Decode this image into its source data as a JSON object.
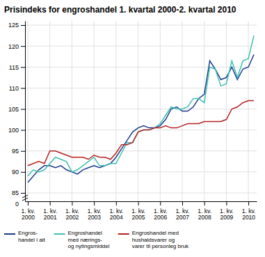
{
  "chart_data": {
    "type": "line",
    "title": "Prisindeks for engroshandel 1. kvartal 2000-2. kvartal 2010",
    "categories": [
      "1. kv.\n2000",
      null,
      null,
      null,
      "1. kv.\n2001",
      null,
      null,
      null,
      "1. kv.\n2002",
      null,
      null,
      null,
      "1. kv.\n2003",
      null,
      null,
      null,
      "1. kv.\n2004",
      null,
      null,
      null,
      "1. kv.\n2005",
      null,
      null,
      null,
      "1. kv.\n2006",
      null,
      null,
      null,
      "1. kv.\n2007",
      null,
      null,
      null,
      "1. kv.\n2008",
      null,
      null,
      null,
      "1. kv.\n2009",
      null,
      null,
      null,
      "1. kv.\n2010",
      null
    ],
    "series": [
      {
        "name": "Engros-\nhandel i alt",
        "color": "#1a3a8c",
        "values": [
          87.5,
          89.0,
          90.5,
          91.5,
          91.5,
          91.0,
          91.5,
          90.5,
          90.0,
          89.5,
          90.5,
          91.0,
          91.5,
          91.0,
          91.5,
          92.0,
          93.5,
          95.5,
          97.5,
          99.5,
          100.5,
          101.0,
          100.5,
          100.5,
          101.0,
          102.5,
          105.0,
          105.5,
          104.5,
          104.5,
          105.5,
          107.5,
          108.5,
          116.5,
          114.5,
          112.0,
          112.5,
          115.0,
          112.0,
          114.5,
          115.0,
          118.0
        ]
      },
      {
        "name": "Engroshandel\nmed nærings-\nog nytingsmiddel",
        "color": "#3dbfb0",
        "values": [
          89.0,
          90.5,
          90.0,
          90.5,
          92.0,
          93.5,
          93.0,
          92.5,
          90.0,
          90.5,
          91.5,
          92.5,
          93.5,
          91.5,
          91.5,
          92.0,
          92.0,
          94.5,
          97.0,
          97.0,
          99.5,
          100.0,
          100.0,
          100.5,
          101.5,
          103.5,
          105.5,
          105.0,
          105.0,
          105.5,
          107.5,
          107.5,
          106.5,
          115.0,
          114.5,
          110.5,
          111.0,
          116.5,
          112.5,
          116.5,
          117.0,
          122.5
        ]
      },
      {
        "name": "Engroshandel med\nhushaldsvarer og\nvarer til personleg bruk",
        "color": "#b52020",
        "values": [
          91.5,
          92.0,
          92.5,
          92.0,
          95.0,
          95.0,
          94.5,
          94.0,
          93.5,
          93.5,
          93.5,
          93.0,
          94.0,
          93.5,
          93.5,
          93.0,
          94.5,
          96.5,
          96.5,
          97.0,
          99.5,
          100.0,
          100.0,
          100.5,
          100.5,
          101.0,
          100.5,
          100.5,
          101.0,
          101.5,
          101.5,
          101.5,
          102.0,
          102.0,
          102.0,
          102.0,
          102.5,
          105.0,
          105.5,
          106.5,
          107.0,
          107.0
        ]
      }
    ],
    "ylim": [
      83,
      126
    ],
    "yticks": [
      85,
      90,
      95,
      100,
      105,
      110,
      115,
      120,
      125
    ],
    "grid": true,
    "legend": "bottom",
    "annotations": [
      "0"
    ]
  }
}
